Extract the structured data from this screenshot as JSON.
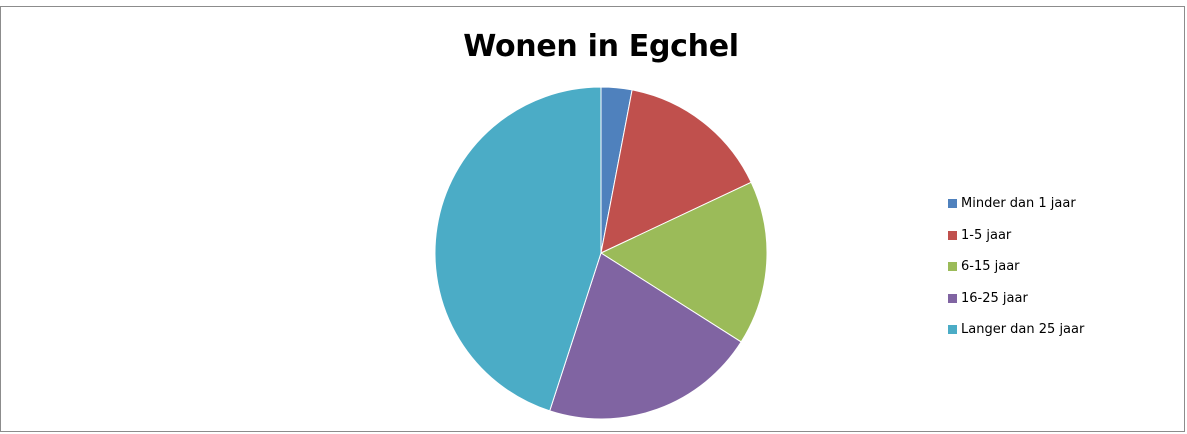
{
  "chart_data": {
    "type": "pie",
    "title": "Wonen in Egchel",
    "categories": [
      "Minder dan 1 jaar",
      "1-5 jaar",
      "6-15 jaar",
      "16-25 jaar",
      "Langer dan 25 jaar"
    ],
    "values": [
      3,
      15,
      16,
      21,
      45
    ],
    "colors": [
      "#4f81bd",
      "#c0504d",
      "#9bbb59",
      "#8064a2",
      "#4bacc6"
    ],
    "start_angle_deg": 0,
    "direction": "clockwise",
    "legend_position": "right"
  }
}
